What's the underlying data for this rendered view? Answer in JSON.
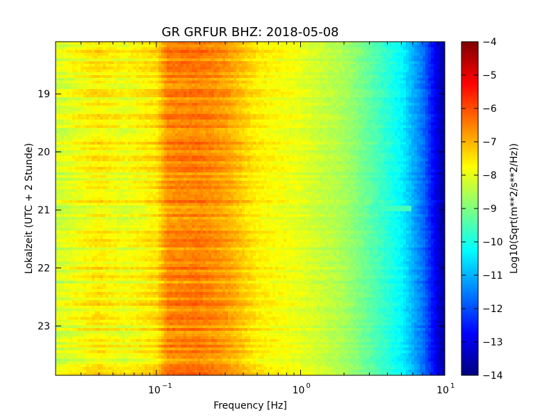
{
  "chart_data": {
    "type": "heatmap",
    "title": "GR GRFUR BHZ: 2018-05-08",
    "xlabel": "Frequency [Hz]",
    "ylabel": "Lokalzeit (UTC + 2 Stunde)",
    "colorbar_label": "Log10(Sqrt(m**2/s**2/Hz))",
    "x_scale": "log",
    "xlim": [
      0.02,
      10
    ],
    "x_ticks": [
      {
        "value": 0.1,
        "base": "10",
        "exp": "−1"
      },
      {
        "value": 1,
        "base": "10",
        "exp": "0"
      },
      {
        "value": 10,
        "base": "10",
        "exp": "1"
      }
    ],
    "ylim": [
      18.1,
      23.85
    ],
    "y_ticks": [
      "19",
      "20",
      "21",
      "22",
      "23"
    ],
    "y_tick_values": [
      19,
      20,
      21,
      22,
      23
    ],
    "colorbar": {
      "colormap": "jet",
      "range": [
        -14,
        -4
      ],
      "ticks": [
        "−4",
        "−5",
        "−6",
        "−7",
        "−8",
        "−9",
        "−10",
        "−11",
        "−12",
        "−13",
        "−14"
      ],
      "tick_values": [
        -4,
        -5,
        -6,
        -7,
        -8,
        -9,
        -10,
        -11,
        -12,
        -13,
        -14
      ]
    },
    "spectrum_profile": {
      "frequency_hz": [
        0.02,
        0.04,
        0.06,
        0.1,
        0.12,
        0.2,
        0.3,
        0.5,
        1,
        2,
        3,
        5,
        7,
        10
      ],
      "level_log10": [
        -8.2,
        -7.6,
        -7.9,
        -7.5,
        -6.6,
        -6.5,
        -6.8,
        -7.6,
        -8.0,
        -8.6,
        -9.3,
        -10.3,
        -11.6,
        -13.8
      ]
    },
    "notable_features": [
      {
        "time_h": 20.97,
        "frequency_range_hz": [
          3,
          6
        ],
        "level_log10": -9.6
      }
    ]
  }
}
